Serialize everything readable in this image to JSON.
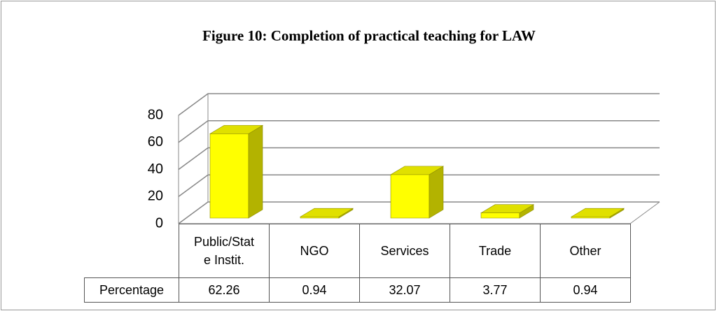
{
  "chart_data": {
    "type": "bar3d",
    "title": "Figure 10: Completion of practical teaching for LAW",
    "categories": [
      "Public/State Instit.",
      "NGO",
      "Services",
      "Trade",
      "Other"
    ],
    "series": [
      {
        "name": "Percentage",
        "color": "#ffff00",
        "values": [
          62.26,
          0.94,
          32.07,
          3.77,
          0.94
        ]
      }
    ],
    "ylim": [
      0,
      80
    ],
    "yticks": [
      0,
      20,
      40,
      60,
      80
    ],
    "grid": true
  }
}
